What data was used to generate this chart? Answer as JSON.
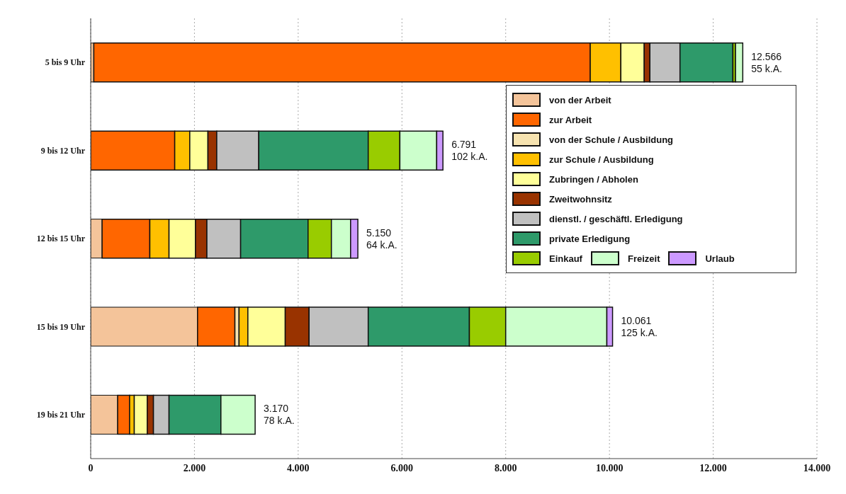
{
  "chart_data": {
    "type": "bar",
    "orientation": "horizontal",
    "stacked": true,
    "categories": [
      "5 bis 9 Uhr",
      "9 bis 12 Uhr",
      "12 bis 15 Uhr",
      "15 bis 19 Uhr",
      "19 bis 21 Uhr"
    ],
    "series": [
      {
        "name": "von der Arbeit",
        "color": "#f4c49a",
        "values": [
          60,
          0,
          220,
          2060,
          520
        ]
      },
      {
        "name": "zur Arbeit",
        "color": "#ff6600",
        "values": [
          9570,
          1620,
          920,
          720,
          230
        ]
      },
      {
        "name": "von der Schule / Ausbildung",
        "color": "#f6e3b0",
        "values": [
          0,
          0,
          0,
          80,
          0
        ]
      },
      {
        "name": "zur Schule / Ausbildung",
        "color": "#ffc000",
        "values": [
          590,
          290,
          370,
          170,
          90
        ]
      },
      {
        "name": "Zubringen / Abholen",
        "color": "#ffff99",
        "values": [
          450,
          350,
          510,
          720,
          250
        ]
      },
      {
        "name": "Zweitwohnsitz",
        "color": "#993300",
        "values": [
          110,
          170,
          220,
          460,
          120
        ]
      },
      {
        "name": "dienstl. / geschäftl. Erledigung",
        "color": "#c0c0c0",
        "values": [
          580,
          810,
          650,
          1140,
          300
        ]
      },
      {
        "name": "private Erledigung",
        "color": "#2e9a6a",
        "values": [
          1020,
          2110,
          1300,
          1950,
          1000
        ]
      },
      {
        "name": "Einkauf",
        "color": "#99cc00",
        "values": [
          50,
          610,
          450,
          700,
          0
        ]
      },
      {
        "name": "Freizeit",
        "color": "#ccffcc",
        "values": [
          140,
          710,
          370,
          1950,
          660
        ]
      },
      {
        "name": "Urlaub",
        "color": "#cc99ff",
        "values": [
          0,
          120,
          140,
          110,
          0
        ]
      }
    ],
    "totals": [
      "12.566",
      "6.791",
      "5.150",
      "10.061",
      "3.170"
    ],
    "annotations": [
      "55 k.A.",
      "102 k.A.",
      "64 k.A.",
      "125 k.A.",
      "78 k.A."
    ],
    "xlim": [
      0,
      14000
    ],
    "xticks": [
      0,
      {
        "value": 2000,
        "label": "2.000"
      },
      {
        "value": 4000,
        "label": "4.000"
      },
      {
        "value": 6000,
        "label": "6.000"
      },
      {
        "value": 8000,
        "label": "8.000"
      },
      {
        "value": 10000,
        "label": "10.000"
      },
      {
        "value": 12000,
        "label": "12.000"
      },
      {
        "value": 14000,
        "label": "14.000"
      }
    ],
    "grid": "x",
    "legend": "top right"
  }
}
